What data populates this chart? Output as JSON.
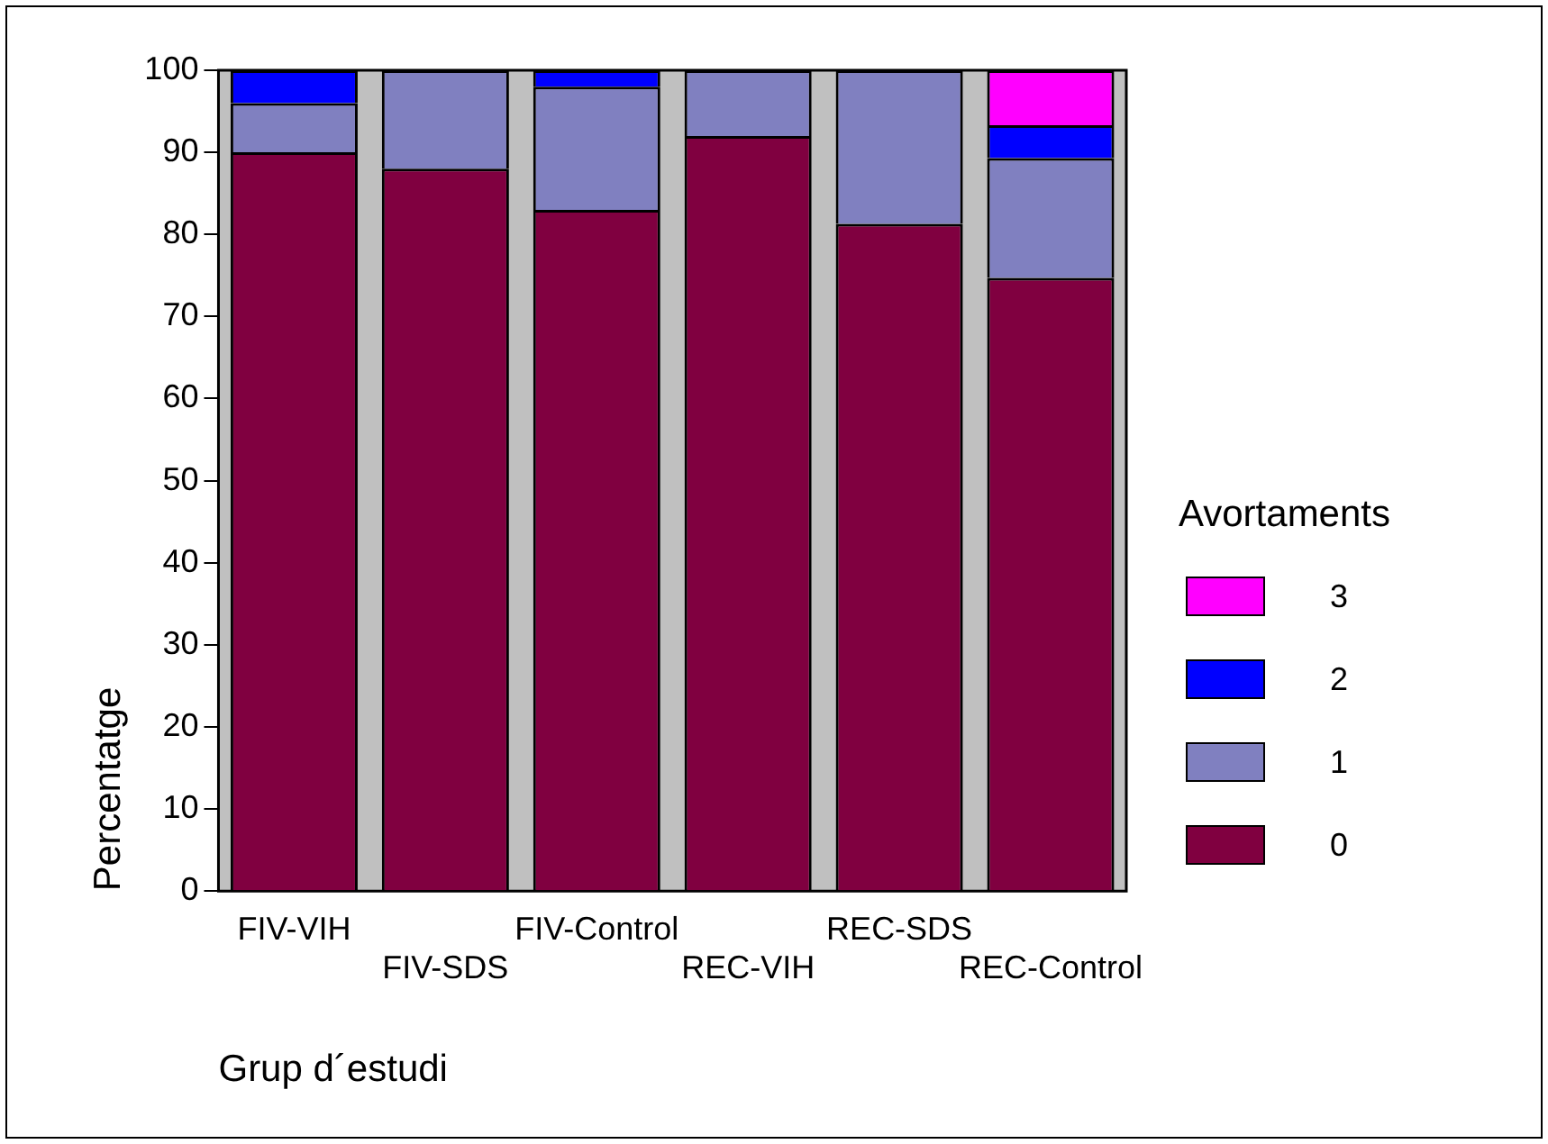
{
  "chart_data": {
    "type": "bar",
    "stacked": true,
    "xlabel": "Grup d´estudi",
    "ylabel": "Percentatge",
    "legend_title": "Avortaments",
    "legend": "right",
    "grid": false,
    "categories": [
      "FIV-VIH",
      "FIV-SDS",
      "FIV-Control",
      "REC-VIH",
      "REC-SDS",
      "REC-Control"
    ],
    "ylim": [
      0,
      100
    ],
    "yticks": [
      0,
      10,
      20,
      30,
      40,
      50,
      60,
      70,
      80,
      90,
      100
    ],
    "series": [
      {
        "name": "0",
        "color": "#800040",
        "values": [
          90,
          88,
          83,
          92,
          81.3,
          74.7
        ]
      },
      {
        "name": "1",
        "color": "#8080c0",
        "values": [
          6,
          12,
          15,
          8,
          18.7,
          14.6
        ]
      },
      {
        "name": "2",
        "color": "#0000ff",
        "values": [
          4,
          null,
          2,
          null,
          null,
          4.0
        ]
      },
      {
        "name": "3",
        "color": "#ff00ff",
        "values": [
          null,
          null,
          null,
          null,
          null,
          6.7
        ]
      }
    ]
  }
}
